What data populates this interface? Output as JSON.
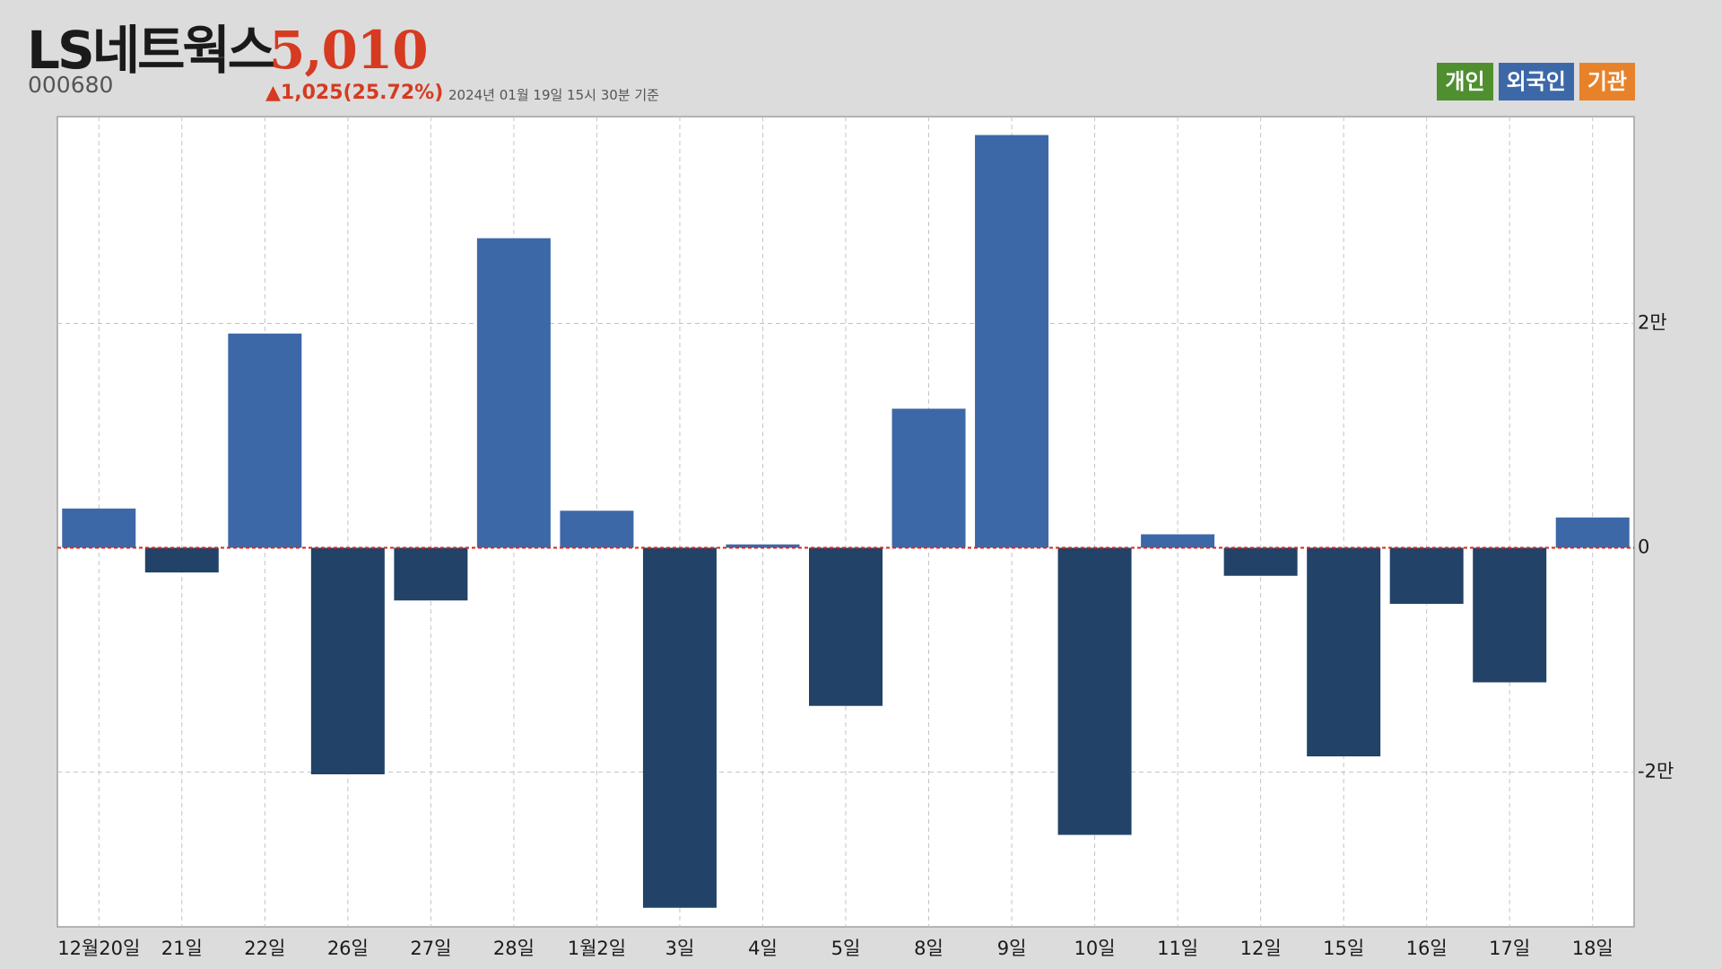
{
  "header": {
    "name": "LS네트웍스",
    "price": "5,010",
    "code": "000680",
    "change": "▲1,025(25.72%)",
    "asof": "2024년 01월 19일 15시 30분 기준"
  },
  "legend": [
    {
      "label": "개인",
      "color": "#4f8f2f"
    },
    {
      "label": "외국인",
      "color": "#3d68a8"
    },
    {
      "label": "기관",
      "color": "#e8822a"
    }
  ],
  "chart_data": {
    "type": "bar",
    "categories": [
      "12월20일",
      "21일",
      "22일",
      "26일",
      "27일",
      "28일",
      "1월2일",
      "3일",
      "4일",
      "5일",
      "8일",
      "9일",
      "10일",
      "11일",
      "12일",
      "15일",
      "16일",
      "17일",
      "18일"
    ],
    "series": [
      {
        "name": "외국인",
        "values": [
          3500,
          -2200,
          19100,
          -20200,
          -4700,
          27600,
          3300,
          -32100,
          300,
          -14100,
          12400,
          36800,
          -25600,
          1200,
          -2500,
          -18600,
          -5000,
          -12000,
          2700
        ]
      }
    ],
    "yticks": [
      {
        "value": 20000,
        "label": "2만"
      },
      {
        "value": 0,
        "label": "0"
      },
      {
        "value": -20000,
        "label": "-2만"
      }
    ],
    "ylim": [
      -33800,
      38600
    ],
    "positive_color": "#3d68a8",
    "negative_color": "#224268",
    "zero_line_color": "#d6281f",
    "grid": true
  }
}
